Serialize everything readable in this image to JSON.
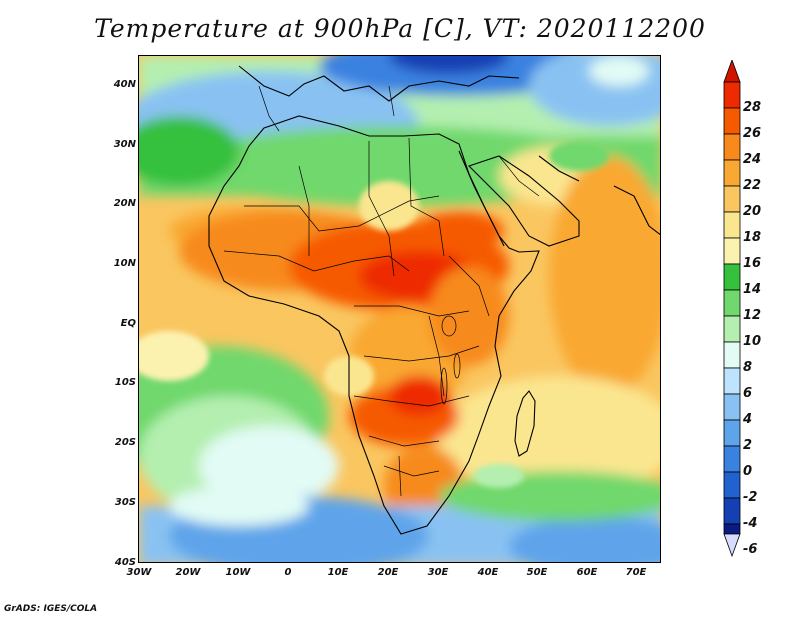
{
  "title": "Temperature at 900hPa [C], VT: 2020112200",
  "credit": "GrADS: IGES/COLA",
  "map": {
    "lat_ticks": [
      "40N",
      "30N",
      "20N",
      "10N",
      "EQ",
      "10S",
      "20S",
      "30S",
      "40S"
    ],
    "lon_ticks": [
      "30W",
      "20W",
      "10W",
      "0",
      "10E",
      "20E",
      "30E",
      "40E",
      "50E",
      "60E",
      "70E"
    ],
    "lat_range_deg": [
      -40,
      45
    ],
    "lon_range_deg": [
      -30,
      75
    ]
  },
  "colorbar": {
    "labels": [
      "28",
      "26",
      "24",
      "22",
      "20",
      "18",
      "16",
      "14",
      "12",
      "10",
      "8",
      "6",
      "4",
      "2",
      "0",
      "-2",
      "-4",
      "-6"
    ],
    "colors": [
      "#ee2a00",
      "#f65a00",
      "#f78a1a",
      "#f9a833",
      "#fac660",
      "#fbe690",
      "#fcf2b0",
      "#35c03d",
      "#70d86c",
      "#b4efb0",
      "#e2fbf5",
      "#bde3ff",
      "#89c2f2",
      "#5ea4ea",
      "#3a82e0",
      "#2261d0",
      "#1440b4",
      "#0a1c84"
    ],
    "top_triangle_color": "#d01400",
    "bottom_triangle_color": "#d7dcff"
  }
}
